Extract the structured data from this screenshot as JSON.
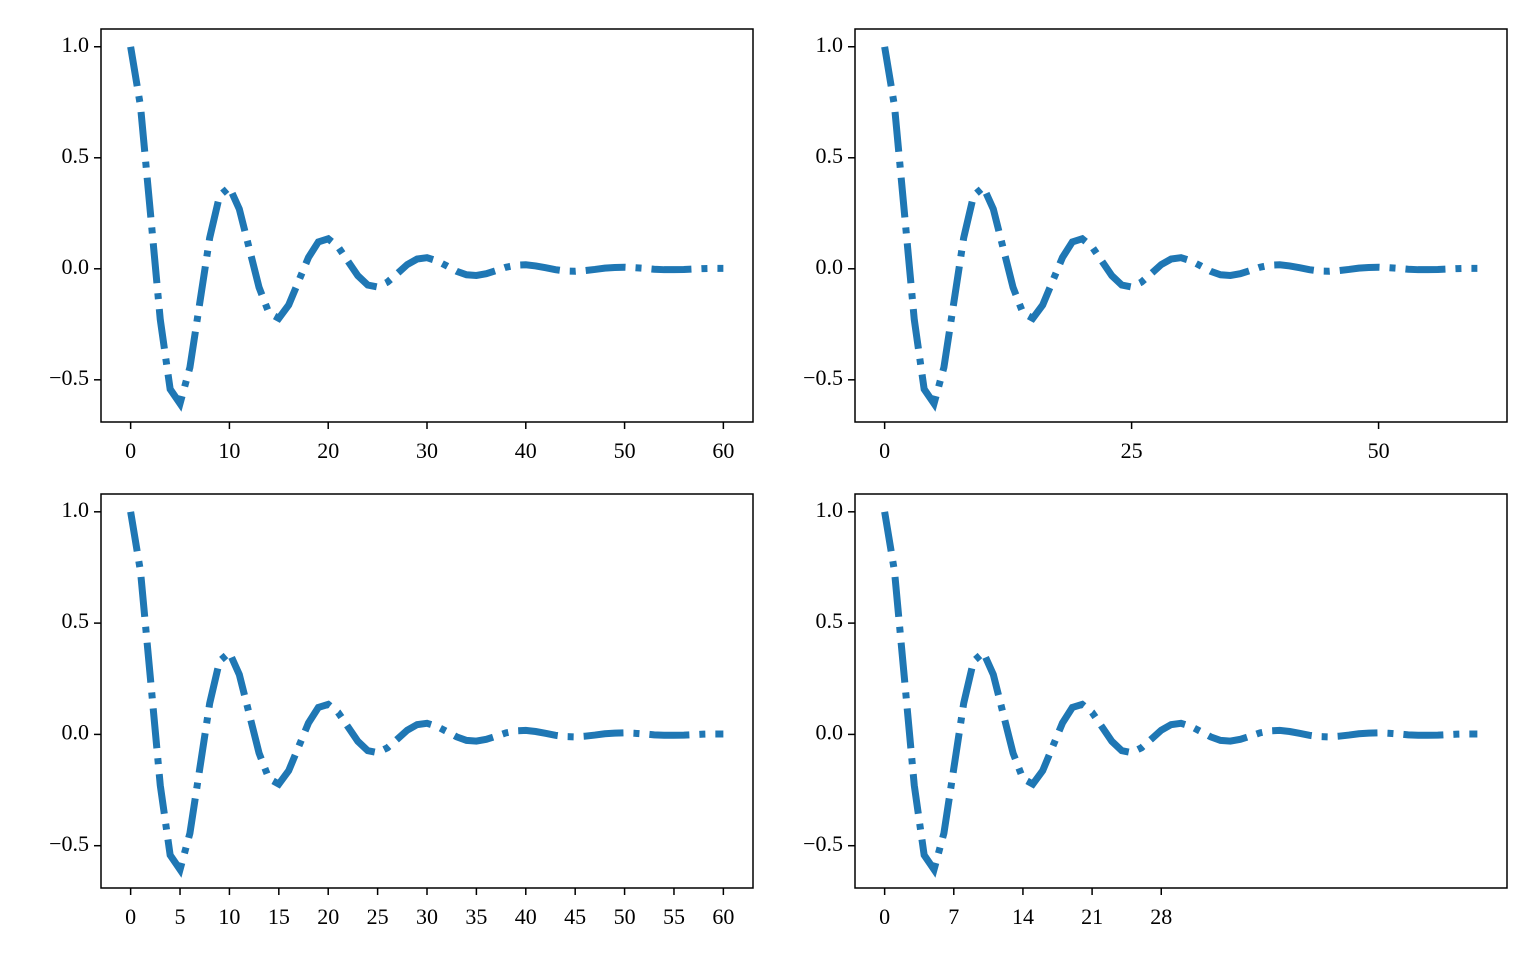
{
  "chart_data": [
    {
      "type": "line",
      "xlim": [
        -3,
        63
      ],
      "ylim": [
        -0.69,
        1.08
      ],
      "xticks": [
        0,
        10,
        20,
        30,
        40,
        50,
        60
      ],
      "yticks": [
        {
          "value": -0.5,
          "label": "−0.5"
        },
        {
          "value": 0,
          "label": "0.0"
        },
        0.5,
        {
          "value": 1,
          "label": "1.0"
        }
      ],
      "color": "#1f77b4",
      "line_style": "dashdot",
      "x": [
        0,
        1,
        2,
        3,
        4,
        5,
        6,
        7,
        8,
        9,
        10,
        11,
        12,
        13,
        14,
        15,
        16,
        17,
        18,
        19,
        20,
        21,
        22,
        23,
        24,
        25,
        26,
        27,
        28,
        29,
        30,
        31,
        32,
        33,
        34,
        35,
        36,
        37,
        38,
        39,
        40,
        41,
        42,
        43,
        44,
        45,
        46,
        47,
        48,
        49,
        50,
        51,
        52,
        53,
        54,
        55,
        56,
        57,
        58,
        59,
        60
      ],
      "values": [
        1,
        0.732,
        0.253,
        -0.229,
        -0.542,
        -0.607,
        -0.444,
        -0.153,
        0.139,
        0.329,
        0.368,
        0.269,
        0.093,
        -0.084,
        -0.199,
        -0.223,
        -0.163,
        -0.056,
        0.051,
        0.121,
        0.135,
        0.099,
        0.034,
        -0.031,
        -0.073,
        -0.082,
        -0.06,
        -0.021,
        0.019,
        0.044,
        0.05,
        0.036,
        0.013,
        -0.011,
        -0.027,
        -0.03,
        -0.022,
        -0.008,
        0.007,
        0.016,
        0.018,
        0.013,
        0.005,
        -0.004,
        -0.01,
        -0.011,
        -0.008,
        -0.003,
        0.003,
        0.006,
        0.007,
        0.005,
        0.002,
        -0.002,
        -0.004,
        -0.004,
        -0.003,
        -0.001,
        0.001,
        0.002,
        0.002
      ]
    },
    {
      "type": "line",
      "xlim": [
        -3,
        63
      ],
      "ylim": [
        -0.69,
        1.08
      ],
      "xticks": [
        0,
        25,
        50
      ],
      "yticks": [
        {
          "value": -0.5,
          "label": "−0.5"
        },
        {
          "value": 0,
          "label": "0.0"
        },
        0.5,
        {
          "value": 1,
          "label": "1.0"
        }
      ],
      "color": "#1f77b4",
      "line_style": "dashdot",
      "x": [
        0,
        1,
        2,
        3,
        4,
        5,
        6,
        7,
        8,
        9,
        10,
        11,
        12,
        13,
        14,
        15,
        16,
        17,
        18,
        19,
        20,
        21,
        22,
        23,
        24,
        25,
        26,
        27,
        28,
        29,
        30,
        31,
        32,
        33,
        34,
        35,
        36,
        37,
        38,
        39,
        40,
        41,
        42,
        43,
        44,
        45,
        46,
        47,
        48,
        49,
        50,
        51,
        52,
        53,
        54,
        55,
        56,
        57,
        58,
        59,
        60
      ],
      "values": [
        1,
        0.732,
        0.253,
        -0.229,
        -0.542,
        -0.607,
        -0.444,
        -0.153,
        0.139,
        0.329,
        0.368,
        0.269,
        0.093,
        -0.084,
        -0.199,
        -0.223,
        -0.163,
        -0.056,
        0.051,
        0.121,
        0.135,
        0.099,
        0.034,
        -0.031,
        -0.073,
        -0.082,
        -0.06,
        -0.021,
        0.019,
        0.044,
        0.05,
        0.036,
        0.013,
        -0.011,
        -0.027,
        -0.03,
        -0.022,
        -0.008,
        0.007,
        0.016,
        0.018,
        0.013,
        0.005,
        -0.004,
        -0.01,
        -0.011,
        -0.008,
        -0.003,
        0.003,
        0.006,
        0.007,
        0.005,
        0.002,
        -0.002,
        -0.004,
        -0.004,
        -0.003,
        -0.001,
        0.001,
        0.002,
        0.002
      ]
    },
    {
      "type": "line",
      "xlim": [
        -3,
        63
      ],
      "ylim": [
        -0.69,
        1.08
      ],
      "xticks": [
        0,
        5,
        10,
        15,
        20,
        25,
        30,
        35,
        40,
        45,
        50,
        55,
        60
      ],
      "yticks": [
        {
          "value": -0.5,
          "label": "−0.5"
        },
        {
          "value": 0,
          "label": "0.0"
        },
        0.5,
        {
          "value": 1,
          "label": "1.0"
        }
      ],
      "color": "#1f77b4",
      "line_style": "dashdot",
      "x": [
        0,
        1,
        2,
        3,
        4,
        5,
        6,
        7,
        8,
        9,
        10,
        11,
        12,
        13,
        14,
        15,
        16,
        17,
        18,
        19,
        20,
        21,
        22,
        23,
        24,
        25,
        26,
        27,
        28,
        29,
        30,
        31,
        32,
        33,
        34,
        35,
        36,
        37,
        38,
        39,
        40,
        41,
        42,
        43,
        44,
        45,
        46,
        47,
        48,
        49,
        50,
        51,
        52,
        53,
        54,
        55,
        56,
        57,
        58,
        59,
        60
      ],
      "values": [
        1,
        0.732,
        0.253,
        -0.229,
        -0.542,
        -0.607,
        -0.444,
        -0.153,
        0.139,
        0.329,
        0.368,
        0.269,
        0.093,
        -0.084,
        -0.199,
        -0.223,
        -0.163,
        -0.056,
        0.051,
        0.121,
        0.135,
        0.099,
        0.034,
        -0.031,
        -0.073,
        -0.082,
        -0.06,
        -0.021,
        0.019,
        0.044,
        0.05,
        0.036,
        0.013,
        -0.011,
        -0.027,
        -0.03,
        -0.022,
        -0.008,
        0.007,
        0.016,
        0.018,
        0.013,
        0.005,
        -0.004,
        -0.01,
        -0.011,
        -0.008,
        -0.003,
        0.003,
        0.006,
        0.007,
        0.005,
        0.002,
        -0.002,
        -0.004,
        -0.004,
        -0.003,
        -0.001,
        0.001,
        0.002,
        0.002
      ]
    },
    {
      "type": "line",
      "xlim": [
        -3,
        63
      ],
      "ylim": [
        -0.69,
        1.08
      ],
      "xticks": [
        0,
        7,
        14,
        21,
        28
      ],
      "yticks": [
        {
          "value": -0.5,
          "label": "−0.5"
        },
        {
          "value": 0,
          "label": "0.0"
        },
        0.5,
        {
          "value": 1,
          "label": "1.0"
        }
      ],
      "color": "#1f77b4",
      "line_style": "dashdot",
      "x": [
        0,
        1,
        2,
        3,
        4,
        5,
        6,
        7,
        8,
        9,
        10,
        11,
        12,
        13,
        14,
        15,
        16,
        17,
        18,
        19,
        20,
        21,
        22,
        23,
        24,
        25,
        26,
        27,
        28,
        29,
        30,
        31,
        32,
        33,
        34,
        35,
        36,
        37,
        38,
        39,
        40,
        41,
        42,
        43,
        44,
        45,
        46,
        47,
        48,
        49,
        50,
        51,
        52,
        53,
        54,
        55,
        56,
        57,
        58,
        59,
        60
      ],
      "values": [
        1,
        0.732,
        0.253,
        -0.229,
        -0.542,
        -0.607,
        -0.444,
        -0.153,
        0.139,
        0.329,
        0.368,
        0.269,
        0.093,
        -0.084,
        -0.199,
        -0.223,
        -0.163,
        -0.056,
        0.051,
        0.121,
        0.135,
        0.099,
        0.034,
        -0.031,
        -0.073,
        -0.082,
        -0.06,
        -0.021,
        0.019,
        0.044,
        0.05,
        0.036,
        0.013,
        -0.011,
        -0.027,
        -0.03,
        -0.022,
        -0.008,
        0.007,
        0.016,
        0.018,
        0.013,
        0.005,
        -0.004,
        -0.01,
        -0.011,
        -0.008,
        -0.003,
        0.003,
        0.006,
        0.007,
        0.005,
        0.002,
        -0.002,
        -0.004,
        -0.004,
        -0.003,
        -0.001,
        0.001,
        0.002,
        0.002
      ]
    }
  ]
}
